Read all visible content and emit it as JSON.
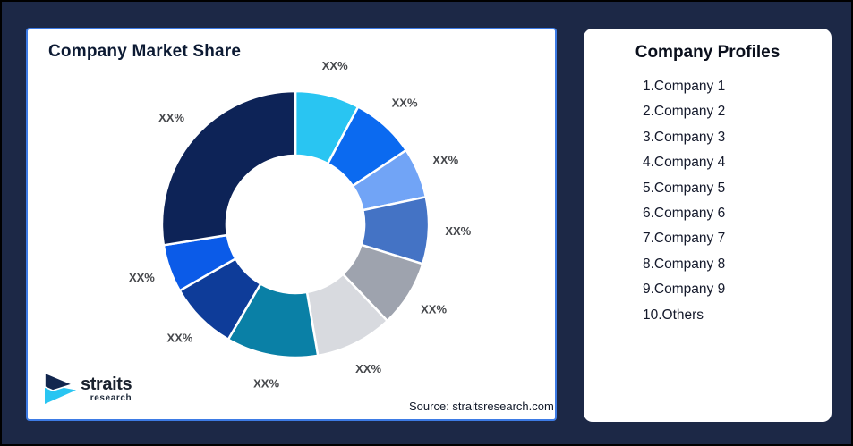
{
  "canvas": {
    "background": "#1C2846",
    "outer_border": "#000000"
  },
  "left_panel": {
    "title": "Company Market Share",
    "source_note": "Source: straitsresearch.com",
    "border_color": "#3D7BE5",
    "logo": {
      "brand": "straits",
      "sub": "research",
      "icon": "straits-chevron-icon",
      "navy": "#12264E",
      "cyan": "#29C5F2"
    }
  },
  "right_panel": {
    "title": "Company Profiles",
    "companies": [
      "1.Company 1",
      "2.Company 2",
      "3.Company 3",
      "4.Company 4",
      "5.Company 5",
      "6.Company 6",
      "7.Company 7",
      "8.Company 8",
      "9.Company 9",
      "10.Others"
    ]
  },
  "chart_data": {
    "type": "pie",
    "subtype": "donut",
    "title": "Company Market Share",
    "direction": "clockwise",
    "start_angle_deg": 0,
    "inner_radius_ratio": 0.52,
    "value_labels_masked": true,
    "label_color": "#46484C",
    "segments": [
      {
        "name": "Company 1",
        "approx_pct": 7.8,
        "color": "#29C5F2",
        "label": "XX%"
      },
      {
        "name": "Company 2",
        "approx_pct": 7.8,
        "color": "#0B6AF0",
        "label": "XX%"
      },
      {
        "name": "Company 3",
        "approx_pct": 6.1,
        "color": "#71A4F6",
        "label": "XX%"
      },
      {
        "name": "Company 4",
        "approx_pct": 8.1,
        "color": "#4473C5",
        "label": "XX%"
      },
      {
        "name": "Company 5",
        "approx_pct": 8.1,
        "color": "#9EA3AE",
        "label": "XX%"
      },
      {
        "name": "Company 6",
        "approx_pct": 9.4,
        "color": "#D8DADF",
        "label": "XX%"
      },
      {
        "name": "Company 7",
        "approx_pct": 11.1,
        "color": "#0A80A6",
        "label": "XX%"
      },
      {
        "name": "Company 8",
        "approx_pct": 8.3,
        "color": "#0E3C99",
        "label": "XX%"
      },
      {
        "name": "Company 9",
        "approx_pct": 5.8,
        "color": "#0B5BE8",
        "label": "XX%"
      },
      {
        "name": "Others",
        "approx_pct": 27.5,
        "color": "#0D2357",
        "label": "XX%"
      }
    ]
  }
}
